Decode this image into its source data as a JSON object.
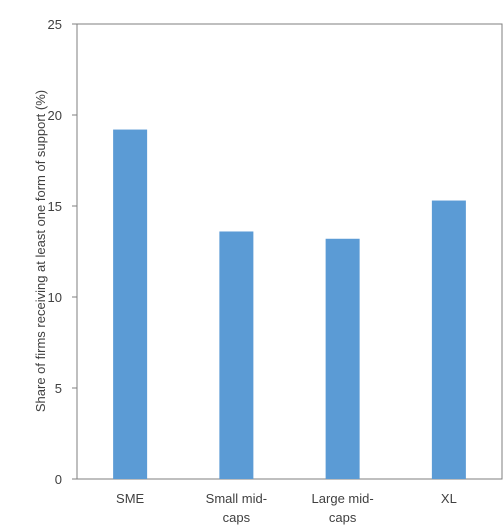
{
  "chart_data": {
    "type": "bar",
    "categories": [
      [
        "SME"
      ],
      [
        "Small mid-",
        "caps"
      ],
      [
        "Large mid-",
        "caps"
      ],
      [
        "XL"
      ]
    ],
    "values": [
      19.2,
      13.6,
      13.2,
      15.3
    ],
    "ylabel": "Share of firms receiving at least one form of support (%)",
    "ylim": [
      0,
      25
    ],
    "yticks": [
      0,
      5,
      10,
      15,
      20,
      25
    ],
    "grid": false,
    "bar_color": "#5b9bd5",
    "axis_color": "#7f7f7f"
  }
}
